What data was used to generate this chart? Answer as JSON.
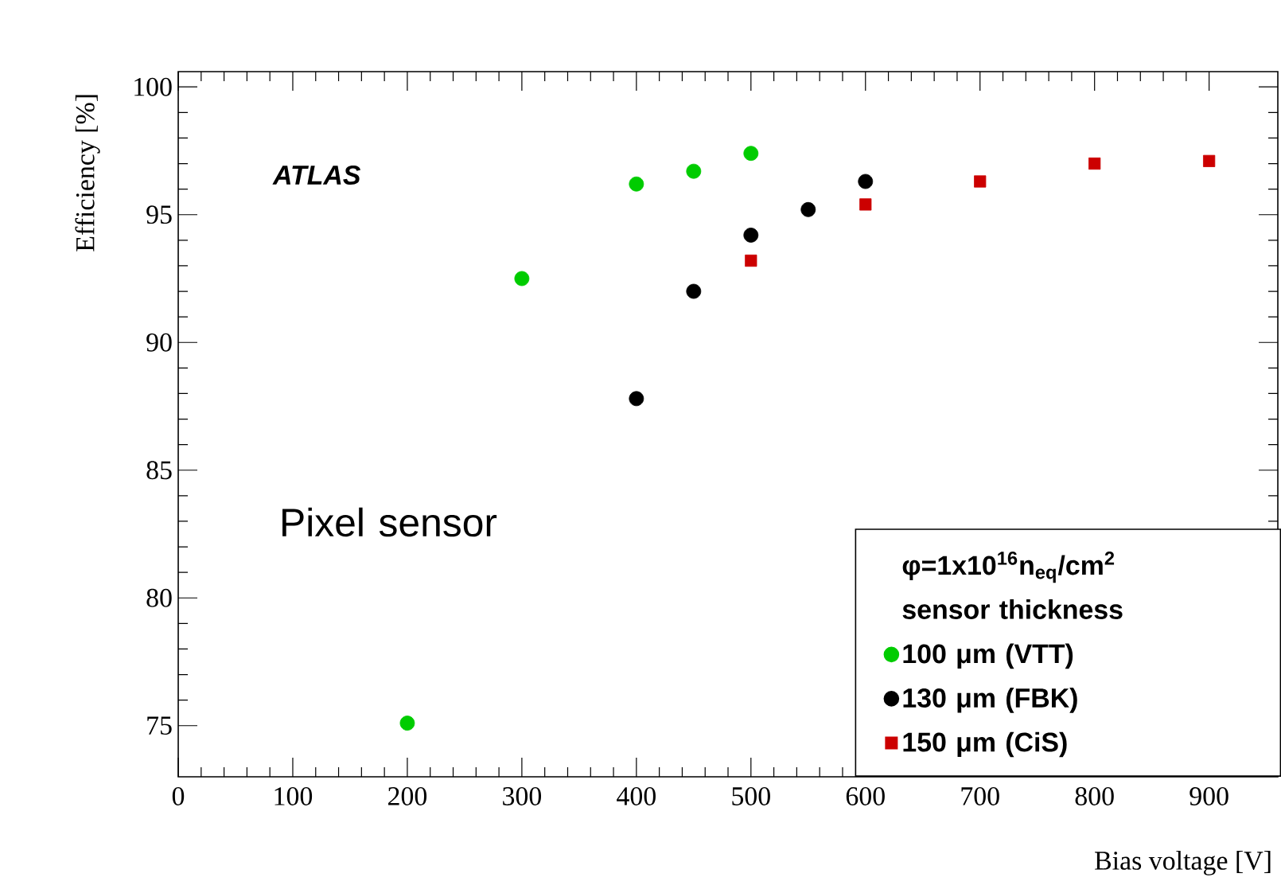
{
  "chart_data": {
    "type": "scatter",
    "xlabel": "Bias voltage [V]",
    "ylabel": "Efficiency [%]",
    "xlim": [
      0,
      960
    ],
    "ylim": [
      73,
      100.6
    ],
    "xticks": [
      0,
      100,
      200,
      300,
      400,
      500,
      600,
      700,
      800,
      900
    ],
    "yticks": [
      75,
      80,
      85,
      90,
      95,
      100
    ],
    "grid": false,
    "legend": "bottom right",
    "legend_title": "φ=1x10$^{16}$n$_{eq}$/cm$^{2}$",
    "annotations": [
      "sensor thickness",
      "ATLAS",
      "Pixel sensor"
    ],
    "series": [
      {
        "name": "100 μm (VTT)",
        "color": "#00cc00",
        "marker": "circle",
        "x": [
          200,
          300,
          400,
          450,
          500
        ],
        "values": [
          75.1,
          92.5,
          96.2,
          96.7,
          97.4
        ]
      },
      {
        "name": "130 μm (FBK)",
        "color": "#000000",
        "marker": "circle",
        "x": [
          400,
          450,
          500,
          550,
          600
        ],
        "values": [
          87.8,
          92.0,
          94.2,
          95.2,
          96.3
        ]
      },
      {
        "name": "150 μm (CiS)",
        "color": "#cc0000",
        "marker": "square",
        "x": [
          500,
          600,
          700,
          800,
          900
        ],
        "values": [
          93.2,
          95.4,
          96.3,
          97.0,
          97.1
        ]
      }
    ]
  }
}
